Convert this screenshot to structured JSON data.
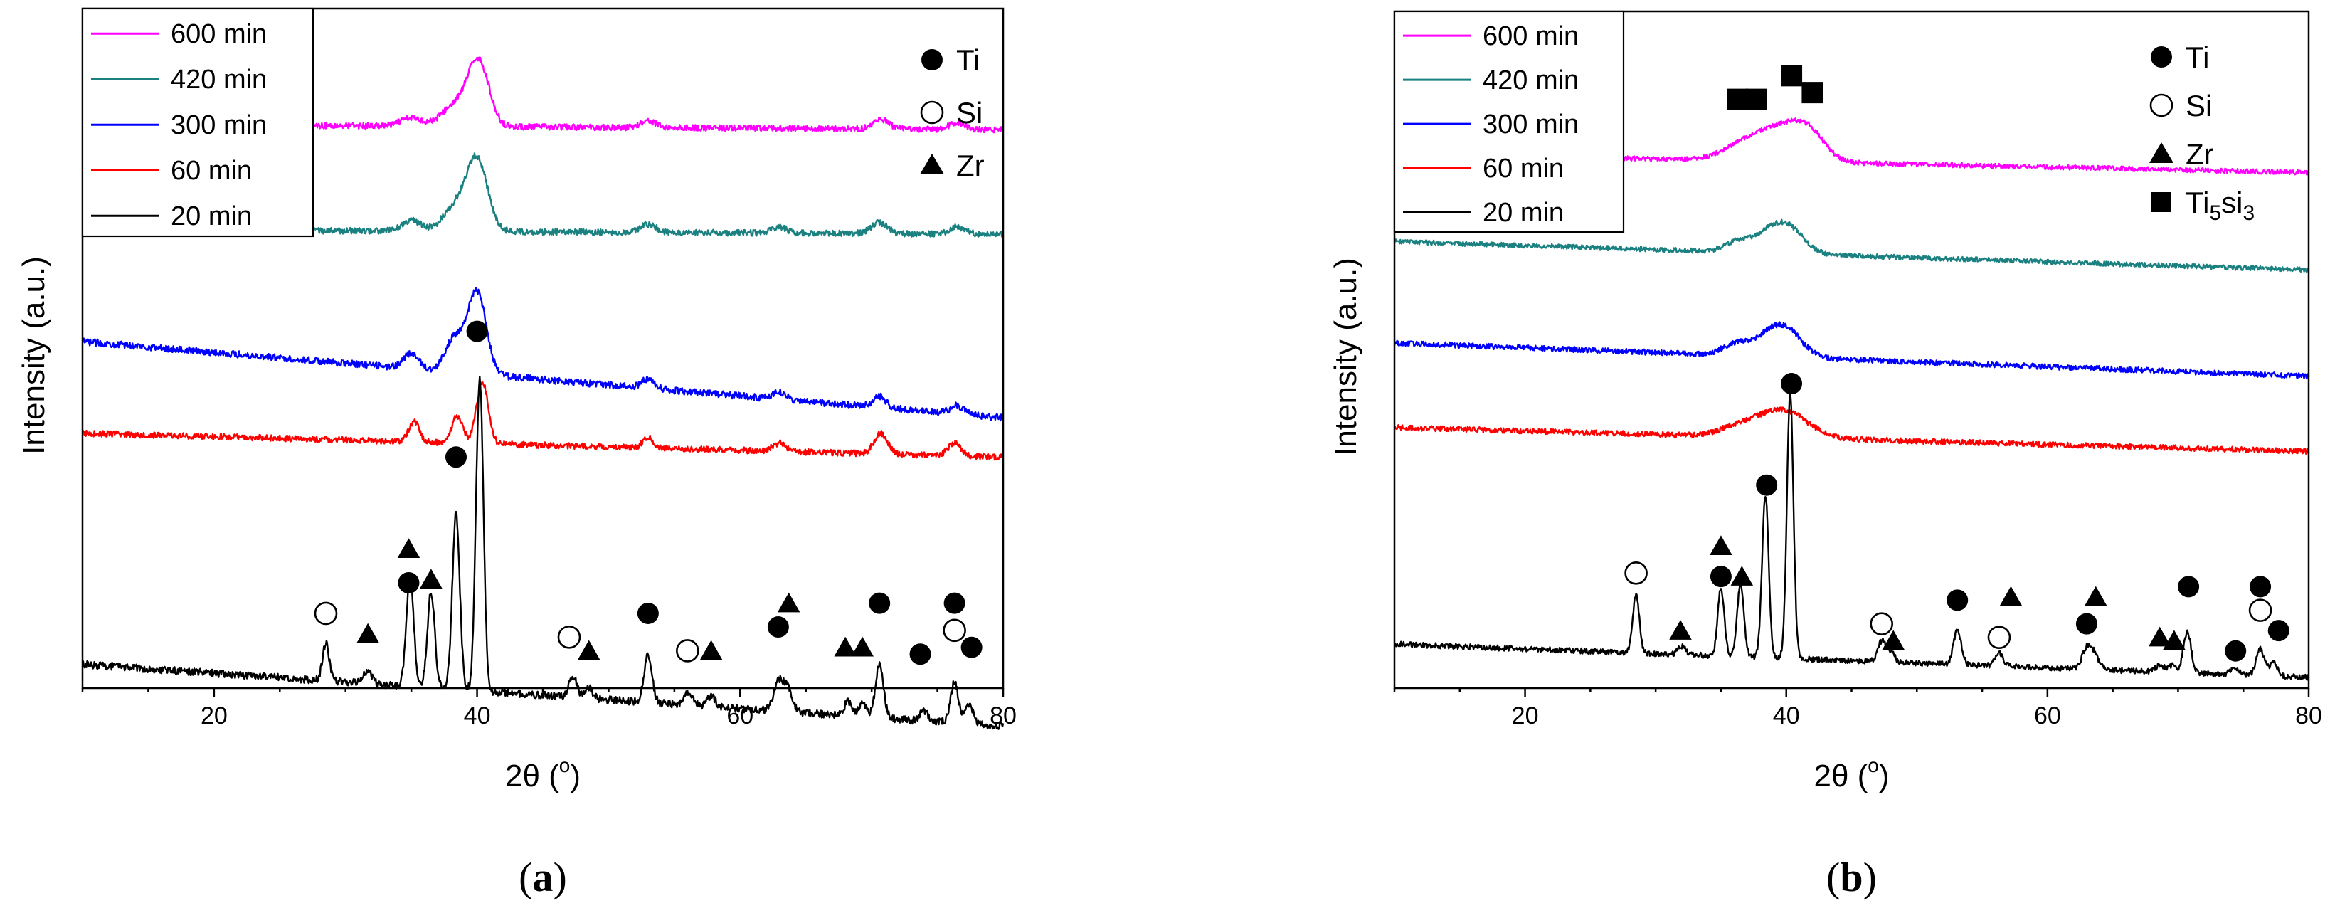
{
  "figure": {
    "panels": [
      "a",
      "b"
    ]
  },
  "chart_data": [
    {
      "id": "a",
      "type": "line",
      "panel_label": "a",
      "xlabel": "2θ (°)",
      "xlabel_main": "2θ (",
      "xlabel_deg": "o",
      "xlabel_end": ")",
      "ylabel": "Intensity (a.u.)",
      "xlim": [
        10,
        80
      ],
      "ylim": [
        0,
        100
      ],
      "x_ticks": [
        20,
        40,
        60,
        80
      ],
      "y_ticks_labeled": false,
      "legend_position": "top-left",
      "series": [
        {
          "name": "600 min",
          "color": "#ff00ff",
          "baseline": 83,
          "slope": -0.012,
          "noise": 0.45,
          "peaks": [
            [
              35.0,
              1.2,
              0.8
            ],
            [
              38.3,
              3.0,
              1.0
            ],
            [
              40.1,
              9.5,
              0.8
            ],
            [
              53.0,
              1.0,
              0.6
            ],
            [
              70.7,
              1.4,
              0.6
            ],
            [
              76.5,
              1.0,
              0.6
            ]
          ]
        },
        {
          "name": "420 min",
          "color": "#1a8080",
          "baseline": 67.5,
          "slope": -0.01,
          "noise": 0.45,
          "peaks": [
            [
              35.0,
              1.6,
              0.7
            ],
            [
              38.3,
              3.5,
              0.9
            ],
            [
              40.0,
              10.5,
              0.8
            ],
            [
              53.0,
              1.2,
              0.6
            ],
            [
              63.0,
              0.8,
              0.6
            ],
            [
              70.6,
              1.6,
              0.6
            ],
            [
              76.5,
              1.0,
              0.6
            ]
          ]
        },
        {
          "name": "300 min",
          "color": "#0000ff",
          "baseline": 51,
          "slope": -0.16,
          "noise": 0.5,
          "peaks": [
            [
              35.0,
              2.2,
              0.6
            ],
            [
              38.3,
              5.0,
              0.7
            ],
            [
              40.0,
              12.0,
              0.7
            ],
            [
              53.0,
              1.4,
              0.5
            ],
            [
              63.0,
              1.0,
              0.5
            ],
            [
              70.6,
              1.6,
              0.5
            ],
            [
              76.5,
              1.2,
              0.5
            ]
          ]
        },
        {
          "name": "60 min",
          "color": "#ff0000",
          "baseline": 37.5,
          "slope": -0.05,
          "noise": 0.45,
          "peaks": [
            [
              35.2,
              3.0,
              0.4
            ],
            [
              38.5,
              4.0,
              0.4
            ],
            [
              40.4,
              9.0,
              0.45
            ],
            [
              53.0,
              1.5,
              0.4
            ],
            [
              63.0,
              1.2,
              0.5
            ],
            [
              70.7,
              3.0,
              0.5
            ],
            [
              76.3,
              1.8,
              0.5
            ]
          ]
        },
        {
          "name": "20 min",
          "color": "#000000",
          "baseline": 3.5,
          "slope": -0.13,
          "noise": 0.55,
          "peaks": [
            [
              28.5,
              5.5,
              0.25
            ],
            [
              31.7,
              2.0,
              0.3
            ],
            [
              34.9,
              16.0,
              0.28
            ],
            [
              36.5,
              14.0,
              0.28
            ],
            [
              38.4,
              26.0,
              0.28
            ],
            [
              40.2,
              46.0,
              0.28
            ],
            [
              47.3,
              3.0,
              0.3
            ],
            [
              48.5,
              1.5,
              0.3
            ],
            [
              53.0,
              7.0,
              0.3
            ],
            [
              56.1,
              2.0,
              0.3
            ],
            [
              57.8,
              1.5,
              0.3
            ],
            [
              62.9,
              4.0,
              0.35
            ],
            [
              63.6,
              3.5,
              0.35
            ],
            [
              68.2,
              2.0,
              0.3
            ],
            [
              69.3,
              2.0,
              0.3
            ],
            [
              70.6,
              8.0,
              0.3
            ],
            [
              74.0,
              1.5,
              0.3
            ],
            [
              76.3,
              6.0,
              0.3
            ],
            [
              77.4,
              3.0,
              0.3
            ]
          ]
        }
      ],
      "phase_key": [
        {
          "symbol": "filled-circle",
          "label": "Ti"
        },
        {
          "symbol": "open-circle",
          "label": "Si"
        },
        {
          "symbol": "triangle",
          "label": "Zr"
        }
      ],
      "phase_markers": [
        {
          "phase": "Si",
          "x": 28.5,
          "y": 11
        },
        {
          "phase": "Zr",
          "x": 31.7,
          "y": 8
        },
        {
          "phase": "Ti",
          "x": 34.8,
          "y": 15.5
        },
        {
          "phase": "Zr",
          "x": 34.8,
          "y": 20.5
        },
        {
          "phase": "Zr",
          "x": 36.5,
          "y": 16
        },
        {
          "phase": "Ti",
          "x": 38.4,
          "y": 34
        },
        {
          "phase": "Ti",
          "x": 40.0,
          "y": 52.5
        },
        {
          "phase": "Si",
          "x": 47.0,
          "y": 7.5
        },
        {
          "phase": "Zr",
          "x": 48.5,
          "y": 5.5
        },
        {
          "phase": "Ti",
          "x": 53.0,
          "y": 11
        },
        {
          "phase": "Si",
          "x": 56.0,
          "y": 5.5
        },
        {
          "phase": "Zr",
          "x": 57.8,
          "y": 5.5
        },
        {
          "phase": "Ti",
          "x": 62.9,
          "y": 9
        },
        {
          "phase": "Zr",
          "x": 63.7,
          "y": 12.5
        },
        {
          "phase": "Zr",
          "x": 68.0,
          "y": 6
        },
        {
          "phase": "Zr",
          "x": 69.3,
          "y": 6
        },
        {
          "phase": "Ti",
          "x": 70.6,
          "y": 12.5
        },
        {
          "phase": "Ti",
          "x": 73.7,
          "y": 5
        },
        {
          "phase": "Ti",
          "x": 76.3,
          "y": 12.5
        },
        {
          "phase": "Si",
          "x": 76.3,
          "y": 8.5
        },
        {
          "phase": "Ti",
          "x": 77.6,
          "y": 6
        }
      ]
    },
    {
      "id": "b",
      "type": "line",
      "panel_label": "b",
      "xlabel": "2θ (°)",
      "xlabel_main": "2θ (",
      "xlabel_deg": "o",
      "xlabel_end": ")",
      "ylabel": "Intensity (a.u.)",
      "xlim": [
        10,
        80
      ],
      "ylim": [
        0,
        100
      ],
      "x_ticks": [
        20,
        40,
        60,
        80
      ],
      "y_ticks_labeled": false,
      "legend_position": "top-left",
      "series": [
        {
          "name": "600 min",
          "color": "#ff00ff",
          "baseline": 79,
          "slope": -0.04,
          "noise": 0.35,
          "peaks": [
            [
              36.5,
              2.2,
              1.5
            ],
            [
              38.3,
              2.0,
              1.2
            ],
            [
              40.4,
              4.5,
              1.5
            ],
            [
              42.0,
              2.5,
              1.2
            ]
          ]
        },
        {
          "name": "420 min",
          "color": "#1a8080",
          "baseline": 66,
          "slope": -0.06,
          "noise": 0.35,
          "peaks": [
            [
              36.3,
              1.6,
              1.0
            ],
            [
              38.4,
              2.0,
              1.0
            ],
            [
              40.1,
              4.0,
              1.2
            ]
          ]
        },
        {
          "name": "300 min",
          "color": "#0000ff",
          "baseline": 51,
          "slope": -0.07,
          "noise": 0.4,
          "peaks": [
            [
              36.2,
              1.8,
              1.0
            ],
            [
              38.4,
              2.0,
              1.0
            ],
            [
              40.0,
              4.0,
              1.2
            ]
          ]
        },
        {
          "name": "60 min",
          "color": "#ff0000",
          "baseline": 38.5,
          "slope": -0.05,
          "noise": 0.4,
          "peaks": [
            [
              36.5,
              1.5,
              1.5
            ],
            [
              39.8,
              4.0,
              1.8
            ]
          ]
        },
        {
          "name": "20 min",
          "color": "#000000",
          "baseline": 6.5,
          "slope": -0.07,
          "noise": 0.4,
          "peaks": [
            [
              28.5,
              8.5,
              0.25
            ],
            [
              32.0,
              1.2,
              0.3
            ],
            [
              35.0,
              10.0,
              0.25
            ],
            [
              36.5,
              11.0,
              0.25
            ],
            [
              38.4,
              24.0,
              0.25
            ],
            [
              40.3,
              39.0,
              0.25
            ],
            [
              47.3,
              3.0,
              0.3
            ],
            [
              48.0,
              1.5,
              0.3
            ],
            [
              53.1,
              5.0,
              0.3
            ],
            [
              56.3,
              2.0,
              0.3
            ],
            [
              63.0,
              3.0,
              0.35
            ],
            [
              63.6,
              2.0,
              0.35
            ],
            [
              68.6,
              1.0,
              0.3
            ],
            [
              69.5,
              1.0,
              0.3
            ],
            [
              70.7,
              6.0,
              0.3
            ],
            [
              74.3,
              1.0,
              0.3
            ],
            [
              76.3,
              4.0,
              0.3
            ],
            [
              77.3,
              2.0,
              0.3
            ]
          ]
        }
      ],
      "phase_key": [
        {
          "symbol": "filled-circle",
          "label": "Ti"
        },
        {
          "symbol": "open-circle",
          "label": "Si"
        },
        {
          "symbol": "triangle",
          "label": "Zr"
        },
        {
          "symbol": "filled-square",
          "label": "Ti5si3",
          "label_main": "Ti",
          "sub1": "5",
          "mid": "si",
          "sub2": "3"
        }
      ],
      "phase_markers": [
        {
          "phase": "Si",
          "x": 28.5,
          "y": 17
        },
        {
          "phase": "Zr",
          "x": 31.9,
          "y": 8.5
        },
        {
          "phase": "Ti",
          "x": 35.0,
          "y": 16.5
        },
        {
          "phase": "Zr",
          "x": 35.0,
          "y": 21
        },
        {
          "phase": "Zr",
          "x": 36.6,
          "y": 16.5
        },
        {
          "phase": "Ti",
          "x": 38.5,
          "y": 30
        },
        {
          "phase": "Ti",
          "x": 40.4,
          "y": 45
        },
        {
          "phase": "Si",
          "x": 47.3,
          "y": 9.5
        },
        {
          "phase": "Zr",
          "x": 48.2,
          "y": 7
        },
        {
          "phase": "Ti",
          "x": 53.1,
          "y": 13
        },
        {
          "phase": "Si",
          "x": 56.3,
          "y": 7.5
        },
        {
          "phase": "Zr",
          "x": 57.2,
          "y": 13.5
        },
        {
          "phase": "Ti",
          "x": 63.0,
          "y": 9.5
        },
        {
          "phase": "Zr",
          "x": 63.7,
          "y": 13.5
        },
        {
          "phase": "Zr",
          "x": 68.6,
          "y": 7.5
        },
        {
          "phase": "Zr",
          "x": 69.7,
          "y": 7
        },
        {
          "phase": "Ti",
          "x": 70.8,
          "y": 15
        },
        {
          "phase": "Ti",
          "x": 74.4,
          "y": 5.5
        },
        {
          "phase": "Ti",
          "x": 76.3,
          "y": 15
        },
        {
          "phase": "Si",
          "x": 76.3,
          "y": 11.5
        },
        {
          "phase": "Ti",
          "x": 77.7,
          "y": 8.5
        },
        {
          "phase": "Ti5si3",
          "x": 36.3,
          "y": 87
        },
        {
          "phase": "Ti5si3",
          "x": 37.7,
          "y": 87
        },
        {
          "phase": "Ti5si3",
          "x": 40.4,
          "y": 90.5
        },
        {
          "phase": "Ti5si3",
          "x": 42.0,
          "y": 88
        }
      ]
    }
  ]
}
